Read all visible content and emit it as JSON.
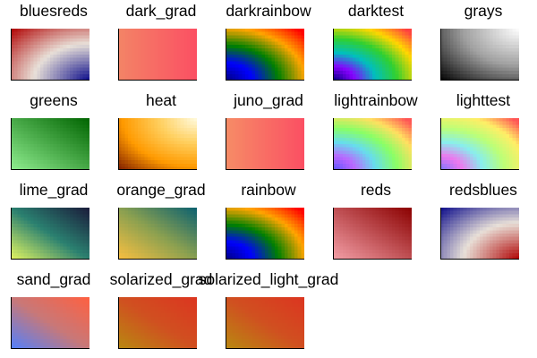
{
  "figure": {
    "columns": 5,
    "swatch_grid": {
      "cols": 24,
      "rows": 16
    }
  },
  "swatches": [
    {
      "label": "bluesreds",
      "kind": "diverging",
      "colors": [
        "#b00000",
        "#e8e0d8",
        "#0a0a8a"
      ]
    },
    {
      "label": "dark_grad",
      "kind": "linear",
      "colors": [
        "#f38466",
        "#fb4f63"
      ]
    },
    {
      "label": "darkrainbow",
      "kind": "rainbow",
      "colors": [
        "#000080",
        "#0000ff",
        "#008000",
        "#ffa500",
        "#ff0000"
      ]
    },
    {
      "label": "darktest",
      "kind": "rainbow",
      "colors": [
        "#000080",
        "#8800ff",
        "#00bfbf",
        "#30d030",
        "#ffd700",
        "#ff4040"
      ]
    },
    {
      "label": "grays",
      "kind": "radial",
      "colors": [
        "#ffffff",
        "#a0a0a0",
        "#000000"
      ]
    },
    {
      "label": "greens",
      "kind": "diagonal",
      "colors": [
        "#90ee90",
        "#006400"
      ]
    },
    {
      "label": "heat",
      "kind": "radial",
      "colors": [
        "#fffbe0",
        "#ffd060",
        "#ff9a00",
        "#7a1a00"
      ]
    },
    {
      "label": "juno_grad",
      "kind": "linear",
      "colors": [
        "#f68c66",
        "#fb4f63"
      ]
    },
    {
      "label": "lightrainbow",
      "kind": "rainbow",
      "colors": [
        "#5555ff",
        "#bb66ff",
        "#66ddee",
        "#88ff66",
        "#ffe060",
        "#ff5555"
      ]
    },
    {
      "label": "lighttest",
      "kind": "rainbow",
      "colors": [
        "#7777ff",
        "#ee77ee",
        "#88eeee",
        "#bbff77",
        "#ffee66",
        "#ff5555"
      ]
    },
    {
      "label": "lime_grad",
      "kind": "corner",
      "colors": [
        "#e5f760",
        "#2a8070",
        "#1a1a3a"
      ]
    },
    {
      "label": "orange_grad",
      "kind": "corner",
      "colors": [
        "#fbc040",
        "#8aa050",
        "#0a6070"
      ]
    },
    {
      "label": "rainbow",
      "kind": "rainbow",
      "colors": [
        "#000080",
        "#0000ff",
        "#008000",
        "#ffa500",
        "#ff0000"
      ]
    },
    {
      "label": "reds",
      "kind": "diagonal",
      "colors": [
        "#f4a0a8",
        "#8b0000"
      ]
    },
    {
      "label": "redsblues",
      "kind": "diverging",
      "colors": [
        "#0a0a8a",
        "#e8e0d8",
        "#b00000"
      ]
    },
    {
      "label": "sand_grad",
      "kind": "corner",
      "colors": [
        "#5080ff",
        "#c87878",
        "#ff6040"
      ]
    },
    {
      "label": "solarized_grad",
      "kind": "corner",
      "colors": [
        "#b88910",
        "#d05020",
        "#dc3520"
      ]
    },
    {
      "label": "solarized_light_grad",
      "kind": "corner",
      "colors": [
        "#b88910",
        "#d05020",
        "#dc3520"
      ]
    }
  ]
}
